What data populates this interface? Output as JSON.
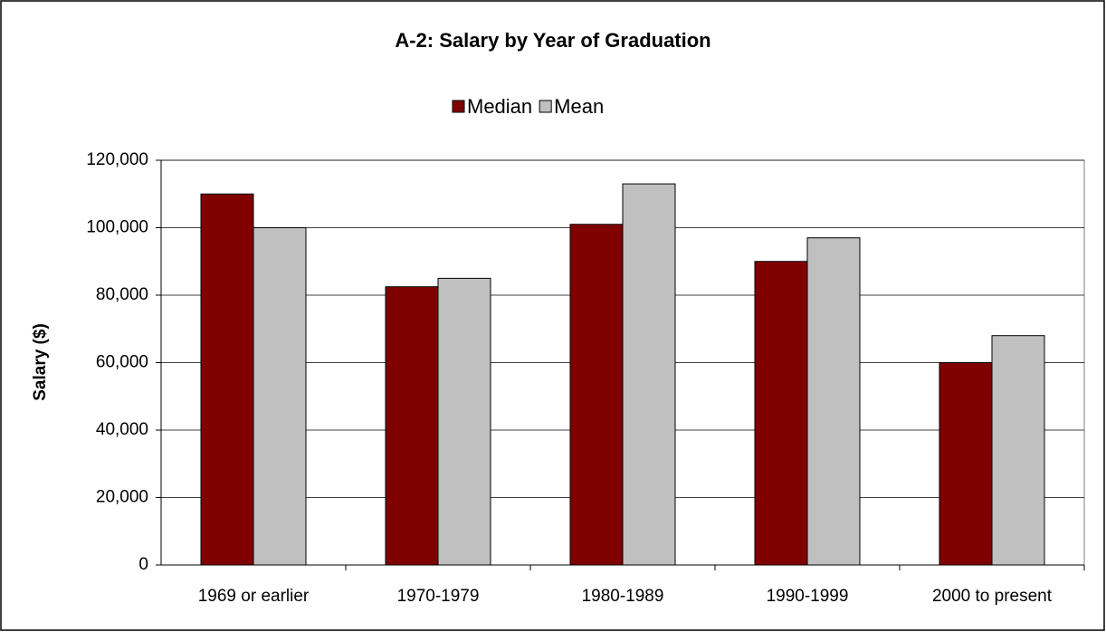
{
  "chart_data": {
    "type": "bar",
    "title": "A-2: Salary by Year of Graduation",
    "y_label": "Salary ($)",
    "categories": [
      "1969 or earlier",
      "1970-1979",
      "1980-1989",
      "1990-1999",
      "2000 to present"
    ],
    "series": [
      {
        "name": "Median",
        "color": "#800000",
        "values": [
          110000,
          82500,
          101000,
          90000,
          60000
        ]
      },
      {
        "name": "Mean",
        "color": "#c0c0c0",
        "values": [
          100000,
          85000,
          113000,
          97000,
          68000
        ]
      }
    ],
    "ylim": [
      0,
      120000
    ],
    "yticks": [
      0,
      {
        "value": 20000,
        "label": "20,000"
      },
      {
        "value": 40000,
        "label": "40,000"
      },
      {
        "value": 60000,
        "label": "60,000"
      },
      {
        "value": 80000,
        "label": "80,000"
      },
      {
        "value": 100000,
        "label": "100,000"
      },
      {
        "value": 120000,
        "label": "120,000"
      }
    ],
    "grid": true,
    "legend": "top"
  }
}
